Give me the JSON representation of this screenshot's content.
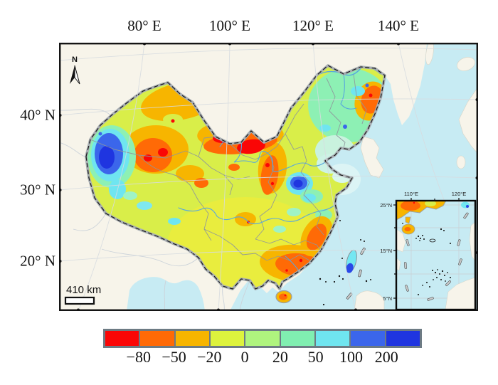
{
  "map": {
    "top_labels": [
      "80° E",
      "100° E",
      "120° E",
      "140° E"
    ],
    "left_labels": [
      "40° N",
      "30° N",
      "20° N"
    ],
    "north_label": "N",
    "scale_label": "410 km"
  },
  "inset": {
    "top_labels": [
      "110°E",
      "120°E"
    ],
    "left_labels": [
      "25°N",
      "15°N",
      "5°N"
    ]
  },
  "colorbar": {
    "tick_labels": [
      "−80",
      "−50",
      "−20",
      "0",
      "20",
      "50",
      "100",
      "200"
    ],
    "colors": [
      "#fa0606",
      "#ff6a06",
      "#f7b500",
      "#ddf33d",
      "#aff47e",
      "#80efb1",
      "#6fe5f0",
      "#3b66eb",
      "#1f35e0"
    ],
    "frame_color": "#6d7b84"
  },
  "chart_data": {
    "type": "heatmap",
    "title": "",
    "legend": {
      "position": "bottom",
      "class_boundaries": [
        -80,
        -50,
        -20,
        0,
        20,
        50,
        100,
        200
      ],
      "class_colors": [
        "#fa0606",
        "#ff6a06",
        "#f7b500",
        "#ddf33d",
        "#aff47e",
        "#80efb1",
        "#6fe5f0",
        "#3b66eb",
        "#1f35e0"
      ]
    },
    "x_axis": {
      "tick_labels": [
        "80° E",
        "100° E",
        "120° E",
        "140° E"
      ]
    },
    "y_axis": {
      "tick_labels": [
        "40° N",
        "30° N",
        "20° N"
      ]
    },
    "inset_axes": {
      "x": [
        "110°E",
        "120°E"
      ],
      "y": [
        "25°N",
        "15°N",
        "5°N"
      ]
    },
    "scale_bar_km": 410
  }
}
